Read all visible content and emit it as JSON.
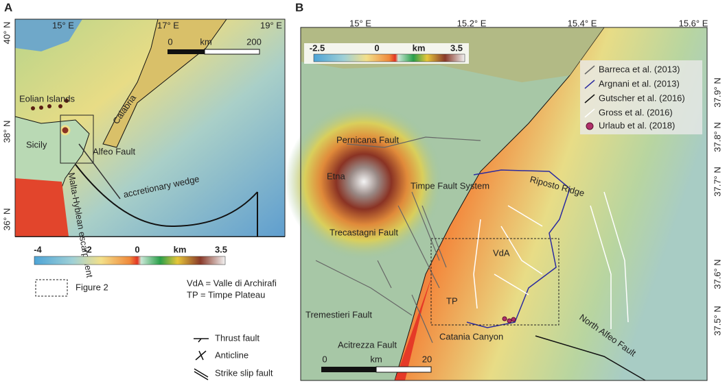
{
  "panel_a": {
    "label": "A",
    "lon_labels": [
      "15° E",
      "17° E",
      "19° E"
    ],
    "lat_labels": [
      "40° N",
      "38° N",
      "36° N"
    ],
    "scale_bar": {
      "start": "0",
      "unit": "km",
      "end": "200"
    },
    "place_labels": [
      "Eolian Islands",
      "Calabria",
      "Sicily",
      "Alfeo Fault",
      "Malta-Hyblean escarpment",
      "accretionary wedge"
    ],
    "colorbar": {
      "ticks": [
        "-4",
        "-2",
        "0",
        "3.5"
      ],
      "unit": "km"
    },
    "legend": {
      "box": "Figure 2",
      "abbreviations": [
        "VdA = Valle di Archirafi",
        "TP   = Timpe Plateau"
      ],
      "symbols": [
        "Thrust fault",
        "Anticline",
        "Strike slip fault"
      ]
    }
  },
  "panel_b": {
    "label": "B",
    "lon_labels": [
      "15° E",
      "15.2° E",
      "15.4° E",
      "15.6° E"
    ],
    "lat_labels": [
      "37.9° N",
      "37.8° N",
      "37.7° N",
      "37.6° N",
      "37.5° N"
    ],
    "colorbar": {
      "ticks": [
        "-2.5",
        "0",
        "3.5"
      ],
      "unit": "km"
    },
    "scale_bar": {
      "start": "0",
      "unit": "km",
      "end": "20"
    },
    "legend": [
      "Barreca et al. (2013)",
      "Argnani et al. (2013)",
      "Gutscher et al. (2016)",
      "Gross et al. (2016)",
      "Urlaub et al. (2018)"
    ],
    "place_labels": [
      "Pernicana Fault",
      "Etna",
      "Timpe Fault System",
      "Riposto Ridge",
      "Trecastagni Fault",
      "VdA",
      "TP",
      "Tremestieri Fault",
      "Acitrezza Fault",
      "Catania Canyon",
      "North Alfeo Fault"
    ]
  }
}
